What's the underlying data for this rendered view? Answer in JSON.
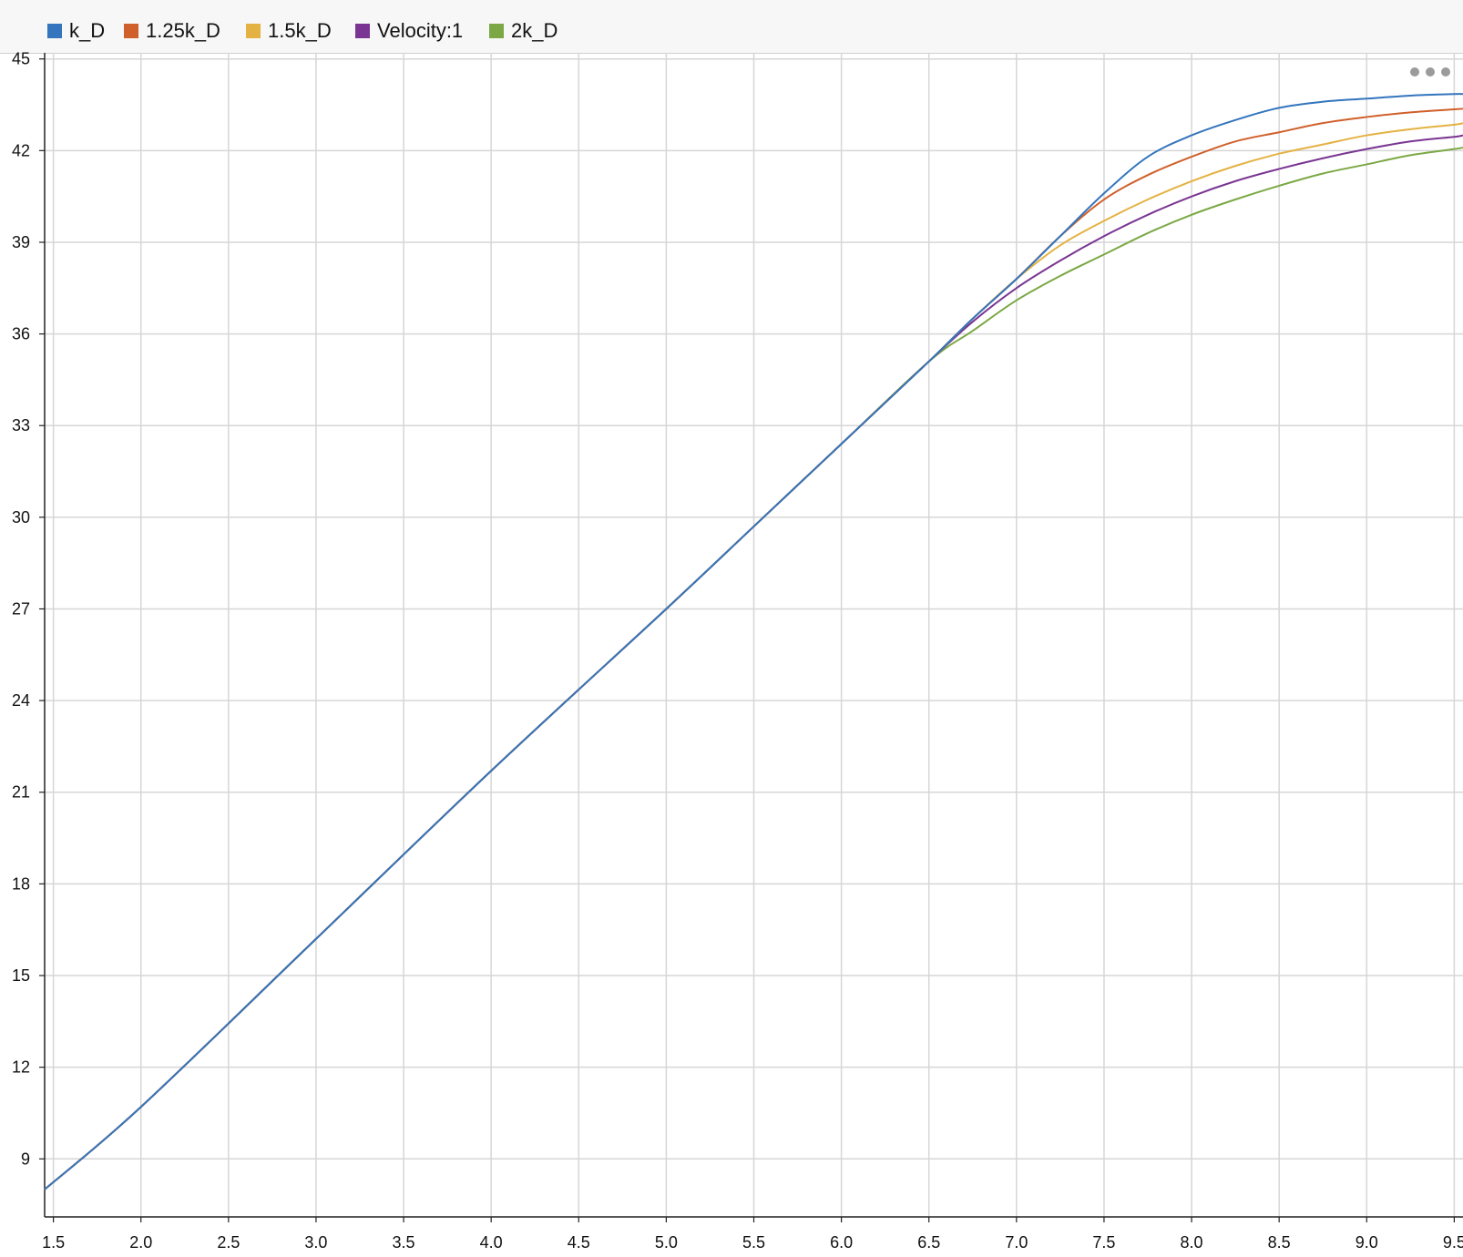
{
  "chart_data": {
    "type": "line",
    "title": "",
    "xlabel": "",
    "ylabel": "",
    "xlim": [
      1.45,
      9.55
    ],
    "ylim": [
      7.1,
      45.2
    ],
    "grid": true,
    "legend_position": "top-left",
    "x_ticks": [
      "1.5",
      "2.0",
      "2.5",
      "3.0",
      "3.5",
      "4.0",
      "4.5",
      "5.0",
      "5.5",
      "6.0",
      "6.5",
      "7.0",
      "7.5",
      "8.0",
      "8.5",
      "9.0",
      "9.5"
    ],
    "y_ticks": [
      "9",
      "12",
      "15",
      "18",
      "21",
      "24",
      "27",
      "30",
      "33",
      "36",
      "39",
      "42",
      "45"
    ],
    "series": [
      {
        "name": "k_D",
        "color": "#3475bd",
        "x": [
          1.45,
          2.0,
          3.0,
          4.0,
          5.0,
          5.5,
          6.0,
          6.5,
          6.75,
          7.0,
          7.25,
          7.5,
          7.75,
          8.0,
          8.25,
          8.5,
          8.75,
          9.0,
          9.25,
          9.5,
          9.55
        ],
        "y": [
          8.0,
          10.7,
          16.2,
          21.7,
          27.0,
          29.7,
          32.4,
          35.1,
          36.5,
          37.8,
          39.2,
          40.6,
          41.8,
          42.5,
          43.0,
          43.4,
          43.6,
          43.7,
          43.8,
          43.85,
          43.85
        ]
      },
      {
        "name": "1.25k_D",
        "color": "#d0602b",
        "x": [
          1.45,
          2.0,
          3.0,
          4.0,
          5.0,
          5.5,
          6.0,
          6.5,
          6.75,
          7.0,
          7.25,
          7.5,
          7.75,
          8.0,
          8.25,
          8.5,
          8.75,
          9.0,
          9.25,
          9.5,
          9.55
        ],
        "y": [
          8.0,
          10.7,
          16.2,
          21.7,
          27.0,
          29.7,
          32.4,
          35.1,
          36.5,
          37.8,
          39.2,
          40.4,
          41.2,
          41.8,
          42.3,
          42.6,
          42.9,
          43.1,
          43.25,
          43.35,
          43.37
        ]
      },
      {
        "name": "1.5k_D",
        "color": "#e4b243",
        "x": [
          1.45,
          2.0,
          3.0,
          4.0,
          5.0,
          5.5,
          6.0,
          6.5,
          6.75,
          7.0,
          7.25,
          7.5,
          7.75,
          8.0,
          8.25,
          8.5,
          8.75,
          9.0,
          9.25,
          9.5,
          9.55
        ],
        "y": [
          8.0,
          10.7,
          16.2,
          21.7,
          27.0,
          29.7,
          32.4,
          35.1,
          36.5,
          37.8,
          38.9,
          39.7,
          40.4,
          41.0,
          41.5,
          41.9,
          42.2,
          42.5,
          42.7,
          42.85,
          42.9
        ]
      },
      {
        "name": "Velocity:1",
        "color": "#7a3592",
        "x": [
          1.45,
          2.0,
          3.0,
          4.0,
          5.0,
          5.5,
          6.0,
          6.5,
          6.75,
          7.0,
          7.25,
          7.5,
          7.75,
          8.0,
          8.25,
          8.5,
          8.75,
          9.0,
          9.25,
          9.5,
          9.55
        ],
        "y": [
          8.0,
          10.7,
          16.2,
          21.7,
          27.0,
          29.7,
          32.4,
          35.1,
          36.4,
          37.5,
          38.4,
          39.2,
          39.9,
          40.5,
          41.0,
          41.4,
          41.75,
          42.05,
          42.3,
          42.45,
          42.5
        ]
      },
      {
        "name": "2k_D",
        "color": "#7ba844",
        "x": [
          1.45,
          2.0,
          3.0,
          4.0,
          5.0,
          5.5,
          6.0,
          6.5,
          6.75,
          7.0,
          7.25,
          7.5,
          7.75,
          8.0,
          8.25,
          8.5,
          8.75,
          9.0,
          9.25,
          9.5,
          9.55
        ],
        "y": [
          8.0,
          10.7,
          16.2,
          21.7,
          27.0,
          29.7,
          32.4,
          35.1,
          36.1,
          37.1,
          37.9,
          38.6,
          39.3,
          39.9,
          40.4,
          40.85,
          41.25,
          41.55,
          41.85,
          42.05,
          42.1
        ]
      }
    ]
  },
  "toolbar": {
    "more_icon": "more-options-icon"
  }
}
